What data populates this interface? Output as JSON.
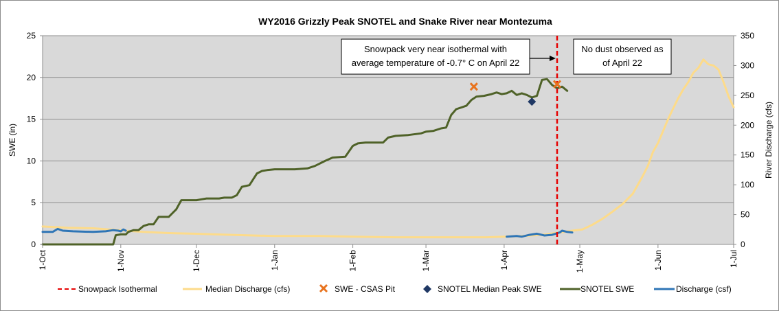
{
  "chart_data": {
    "type": "line",
    "title": "WY2016 Grizzly Peak SNOTEL and Snake River near Montezuma",
    "ylabel": "SWE (in)",
    "y2label": "River Discharge (cfs)",
    "ylim": [
      0,
      25
    ],
    "y2lim": [
      0,
      350
    ],
    "yticks": [
      "0",
      "5",
      "10",
      "15",
      "20",
      "25"
    ],
    "y2ticks": [
      "0",
      "50",
      "100",
      "150",
      "200",
      "250",
      "300",
      "350"
    ],
    "xlim": [
      0,
      273
    ],
    "xticks": [
      {
        "label": "1-Oct",
        "day": 0
      },
      {
        "label": "1-Nov",
        "day": 31
      },
      {
        "label": "1-Dec",
        "day": 61
      },
      {
        "label": "1-Jan",
        "day": 92
      },
      {
        "label": "1-Feb",
        "day": 123
      },
      {
        "label": "1-Mar",
        "day": 152
      },
      {
        "label": "1-Apr",
        "day": 183
      },
      {
        "label": "1-May",
        "day": 213
      },
      {
        "label": "1-Jun",
        "day": 244
      },
      {
        "label": "1-Jul",
        "day": 274
      }
    ],
    "grid": true,
    "legend_position": "bottom",
    "isothermal_day": 204,
    "annotations": [
      {
        "lines": [
          "Snowpack very near isothermal with",
          "average temperature of -0.7° C on April 22"
        ]
      },
      {
        "lines": [
          "No dust observed as",
          "of April 22"
        ]
      }
    ],
    "series": [
      {
        "name": "Snowpack Isothermal",
        "axis": "left",
        "color": "#e60000",
        "style": "dashed",
        "points": [
          [
            204,
            0
          ],
          [
            204,
            25
          ]
        ]
      },
      {
        "name": "Median Discharge (cfs)",
        "axis": "right",
        "color": "#fddb8a",
        "style": "line",
        "points": [
          [
            0,
            30
          ],
          [
            10,
            28
          ],
          [
            20,
            27
          ],
          [
            30,
            24
          ],
          [
            40,
            21
          ],
          [
            50,
            19
          ],
          [
            60,
            18
          ],
          [
            75,
            16
          ],
          [
            92,
            14
          ],
          [
            110,
            14
          ],
          [
            123,
            13
          ],
          [
            140,
            12
          ],
          [
            152,
            12
          ],
          [
            165,
            12
          ],
          [
            176,
            12
          ],
          [
            183,
            13
          ],
          [
            190,
            14
          ],
          [
            198,
            16
          ],
          [
            205,
            20
          ],
          [
            210,
            23
          ],
          [
            214,
            25
          ],
          [
            218,
            33
          ],
          [
            222,
            43
          ],
          [
            226,
            55
          ],
          [
            230,
            68
          ],
          [
            234,
            85
          ],
          [
            236,
            100
          ],
          [
            238,
            115
          ],
          [
            240,
            132
          ],
          [
            242,
            155
          ],
          [
            244,
            170
          ],
          [
            246,
            190
          ],
          [
            248,
            210
          ],
          [
            250,
            228
          ],
          [
            252,
            245
          ],
          [
            254,
            260
          ],
          [
            256,
            272
          ],
          [
            258,
            288
          ],
          [
            260,
            296
          ],
          [
            262,
            310
          ],
          [
            264,
            302
          ],
          [
            266,
            300
          ],
          [
            268,
            293
          ],
          [
            270,
            272
          ],
          [
            272,
            248
          ],
          [
            274,
            230
          ]
        ]
      },
      {
        "name": "SWE - CSAS Pit",
        "axis": "left",
        "color": "#e8731e",
        "style": "x",
        "points": [
          [
            171,
            18.9
          ],
          [
            204,
            19.2
          ]
        ]
      },
      {
        "name": "SNOTEL Median Peak SWE",
        "axis": "left",
        "color": "#1f3864",
        "style": "diamond",
        "points": [
          [
            194,
            17.1
          ]
        ]
      },
      {
        "name": "SNOTEL SWE",
        "axis": "left",
        "color": "#4f6228",
        "style": "line",
        "points": [
          [
            0,
            0
          ],
          [
            10,
            0
          ],
          [
            20,
            0
          ],
          [
            28,
            0
          ],
          [
            29,
            1.1
          ],
          [
            31,
            1.2
          ],
          [
            33,
            1.2
          ],
          [
            34,
            1.5
          ],
          [
            36,
            1.7
          ],
          [
            38,
            1.7
          ],
          [
            40,
            2.2
          ],
          [
            42,
            2.4
          ],
          [
            44,
            2.4
          ],
          [
            46,
            3.3
          ],
          [
            48,
            3.3
          ],
          [
            50,
            3.3
          ],
          [
            53,
            4.2
          ],
          [
            55,
            5.3
          ],
          [
            58,
            5.3
          ],
          [
            61,
            5.3
          ],
          [
            63,
            5.4
          ],
          [
            65,
            5.5
          ],
          [
            70,
            5.5
          ],
          [
            72,
            5.6
          ],
          [
            75,
            5.6
          ],
          [
            77,
            5.9
          ],
          [
            79,
            6.9
          ],
          [
            82,
            7.1
          ],
          [
            85,
            8.5
          ],
          [
            87,
            8.8
          ],
          [
            89,
            8.9
          ],
          [
            92,
            9.0
          ],
          [
            100,
            9.0
          ],
          [
            105,
            9.1
          ],
          [
            108,
            9.4
          ],
          [
            112,
            10.0
          ],
          [
            115,
            10.4
          ],
          [
            120,
            10.5
          ],
          [
            123,
            11.8
          ],
          [
            125,
            12.1
          ],
          [
            128,
            12.2
          ],
          [
            135,
            12.2
          ],
          [
            137,
            12.8
          ],
          [
            140,
            13.0
          ],
          [
            145,
            13.1
          ],
          [
            150,
            13.3
          ],
          [
            152,
            13.5
          ],
          [
            155,
            13.6
          ],
          [
            158,
            13.9
          ],
          [
            160,
            14.0
          ],
          [
            162,
            15.5
          ],
          [
            164,
            16.2
          ],
          [
            166,
            16.4
          ],
          [
            168,
            16.6
          ],
          [
            170,
            17.3
          ],
          [
            172,
            17.7
          ],
          [
            175,
            17.8
          ],
          [
            178,
            18.0
          ],
          [
            180,
            18.2
          ],
          [
            182,
            18.0
          ],
          [
            184,
            18.1
          ],
          [
            186,
            18.4
          ],
          [
            188,
            17.9
          ],
          [
            190,
            18.1
          ],
          [
            192,
            17.9
          ],
          [
            194,
            17.6
          ],
          [
            196,
            17.8
          ],
          [
            198,
            19.7
          ],
          [
            200,
            19.8
          ],
          [
            202,
            19.1
          ],
          [
            204,
            18.7
          ],
          [
            206,
            18.9
          ],
          [
            208,
            18.4
          ]
        ]
      },
      {
        "name": "Discharge (csf)",
        "axis": "right",
        "color": "#2e75b6",
        "style": "line",
        "points": [
          [
            0,
            21
          ],
          [
            4,
            21
          ],
          [
            6,
            26
          ],
          [
            8,
            23
          ],
          [
            12,
            22
          ],
          [
            20,
            21
          ],
          [
            25,
            22
          ],
          [
            28,
            24
          ],
          [
            30,
            23
          ],
          [
            31,
            22
          ],
          [
            32,
            25
          ],
          [
            33,
            23
          ],
          [
            184,
            13
          ],
          [
            188,
            14
          ],
          [
            190,
            13
          ],
          [
            193,
            16
          ],
          [
            196,
            18
          ],
          [
            199,
            15
          ],
          [
            202,
            16
          ],
          [
            205,
            20
          ],
          [
            206,
            23
          ],
          [
            208,
            21
          ],
          [
            210,
            20
          ]
        ]
      }
    ]
  }
}
